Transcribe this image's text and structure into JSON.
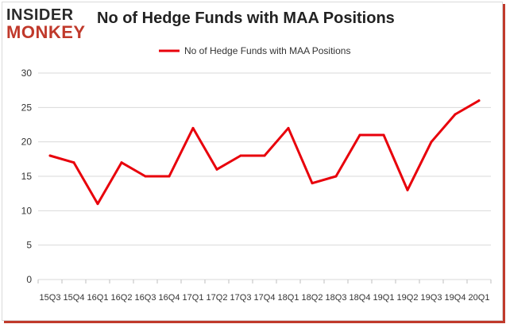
{
  "logo": {
    "line1": "INSIDER",
    "line2": "MONKEY"
  },
  "colors": {
    "series": "#e8000b",
    "grid": "#d9d9d9",
    "accent": "#c0392b"
  },
  "chart_data": {
    "type": "line",
    "title": "No of Hedge Funds with MAA Positions",
    "xlabel": "",
    "ylabel": "",
    "ylim": [
      0,
      30
    ],
    "yticks": [
      0,
      5,
      10,
      15,
      20,
      25,
      30
    ],
    "grid": true,
    "legend": "top-center",
    "categories": [
      "15Q3",
      "15Q4",
      "16Q1",
      "16Q2",
      "16Q3",
      "16Q4",
      "17Q1",
      "17Q2",
      "17Q3",
      "17Q4",
      "18Q1",
      "18Q2",
      "18Q3",
      "18Q4",
      "19Q1",
      "19Q2",
      "19Q3",
      "19Q4",
      "20Q1"
    ],
    "series": [
      {
        "name": "No of Hedge Funds with MAA Positions",
        "values": [
          18,
          17,
          11,
          17,
          15,
          15,
          22,
          16,
          18,
          18,
          22,
          14,
          15,
          21,
          21,
          13,
          20,
          24,
          26
        ]
      }
    ]
  }
}
